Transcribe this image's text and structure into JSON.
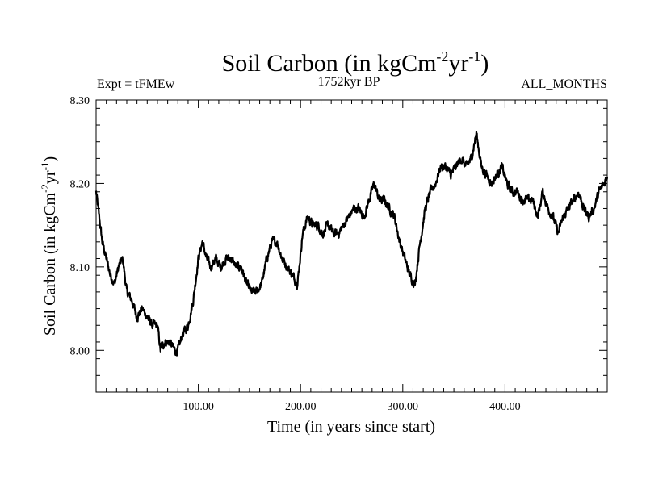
{
  "chart_data": {
    "type": "line",
    "title_main": "Soil Carbon (in kgCm",
    "title_sup1": "-2",
    "title_mid": "yr",
    "title_sup2": "-1",
    "title_end": ")",
    "left_label": "Expt = tFMEw",
    "center_label": "1752kyr BP",
    "right_label": "ALL_MONTHS",
    "xlabel": "Time (in years since start)",
    "ylabel_main": "Soil Carbon (in kgCm",
    "ylabel_sup1": "-2",
    "ylabel_mid": "yr",
    "ylabel_sup2": "-1",
    "ylabel_end": ")",
    "xlim": [
      0,
      500
    ],
    "ylim": [
      7.95,
      8.3
    ],
    "x_major_ticks": [
      100,
      200,
      300,
      400
    ],
    "x_tick_labels": [
      "100.00",
      "200.00",
      "300.00",
      "400.00"
    ],
    "y_major_ticks": [
      8.0,
      8.1,
      8.2,
      8.3
    ],
    "y_tick_labels": [
      "8.00",
      "8.10",
      "8.20",
      "8.30"
    ],
    "series": [
      {
        "name": "Soil Carbon",
        "x": [
          0,
          3,
          6,
          10,
          14,
          18,
          22,
          26,
          30,
          35,
          40,
          45,
          50,
          55,
          60,
          63,
          67,
          72,
          77,
          80,
          85,
          90,
          95,
          100,
          104,
          108,
          112,
          117,
          122,
          127,
          132,
          137,
          142,
          147,
          152,
          157,
          162,
          167,
          172,
          177,
          182,
          187,
          192,
          197,
          202,
          207,
          212,
          217,
          222,
          227,
          232,
          237,
          242,
          247,
          252,
          257,
          262,
          267,
          272,
          277,
          282,
          287,
          292,
          297,
          302,
          307,
          312,
          317,
          322,
          327,
          332,
          337,
          342,
          347,
          352,
          357,
          362,
          367,
          372,
          377,
          382,
          387,
          392,
          397,
          402,
          407,
          412,
          417,
          422,
          427,
          432,
          437,
          442,
          447,
          452,
          457,
          462,
          467,
          472,
          477,
          482,
          487,
          492,
          497,
          500
        ],
        "y": [
          8.19,
          8.16,
          8.13,
          8.11,
          8.09,
          8.08,
          8.1,
          8.11,
          8.07,
          8.06,
          8.04,
          8.05,
          8.04,
          8.03,
          8.03,
          8.0,
          8.01,
          8.01,
          8.0,
          8.0,
          8.02,
          8.03,
          8.06,
          8.11,
          8.13,
          8.11,
          8.1,
          8.11,
          8.1,
          8.11,
          8.11,
          8.1,
          8.1,
          8.08,
          8.07,
          8.07,
          8.08,
          8.11,
          8.13,
          8.13,
          8.11,
          8.1,
          8.09,
          8.08,
          8.14,
          8.16,
          8.15,
          8.15,
          8.14,
          8.15,
          8.14,
          8.14,
          8.15,
          8.16,
          8.17,
          8.17,
          8.16,
          8.18,
          8.2,
          8.18,
          8.18,
          8.17,
          8.16,
          8.13,
          8.11,
          8.09,
          8.08,
          8.13,
          8.17,
          8.19,
          8.2,
          8.22,
          8.22,
          8.21,
          8.22,
          8.23,
          8.22,
          8.23,
          8.26,
          8.22,
          8.21,
          8.2,
          8.21,
          8.22,
          8.2,
          8.19,
          8.19,
          8.18,
          8.18,
          8.18,
          8.16,
          8.19,
          8.17,
          8.16,
          8.14,
          8.16,
          8.17,
          8.18,
          8.19,
          8.17,
          8.16,
          8.17,
          8.19,
          8.2,
          8.21
        ]
      }
    ]
  }
}
